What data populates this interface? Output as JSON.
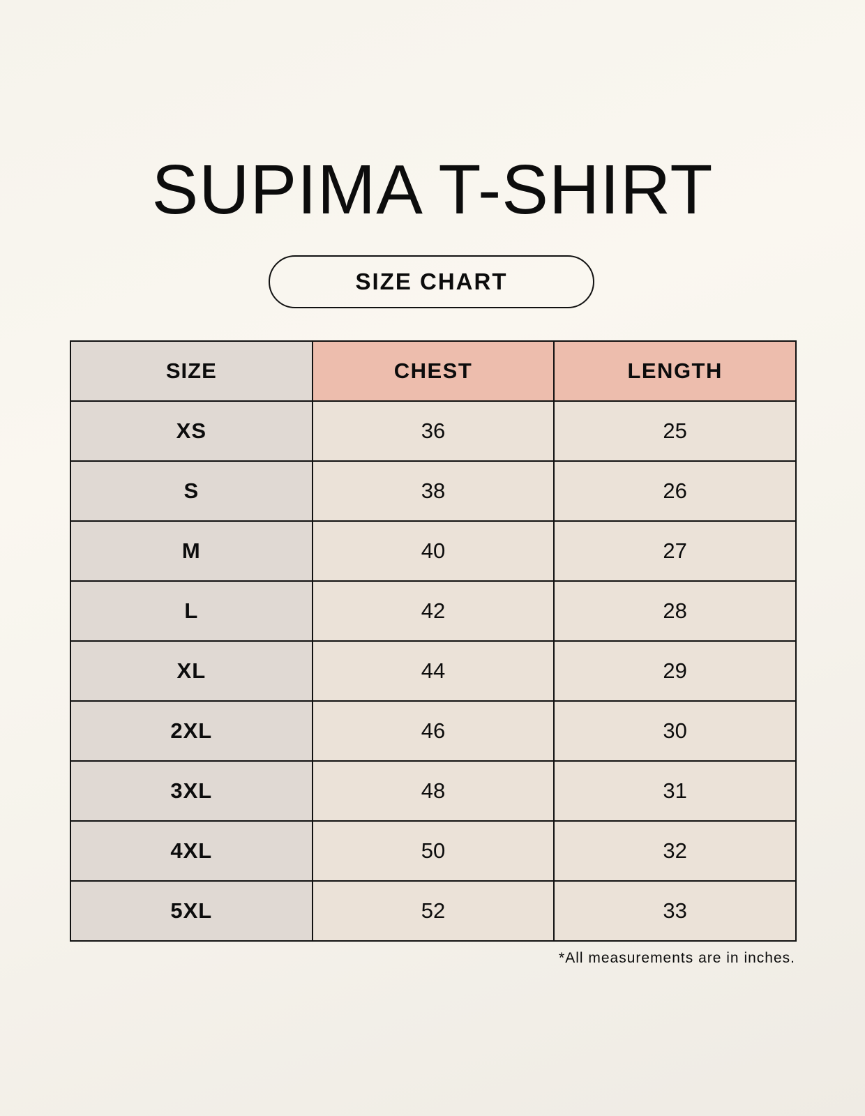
{
  "title": "SUPIMA T-SHIRT",
  "subtitle": "SIZE CHART",
  "table": {
    "headers": [
      "SIZE",
      "CHEST",
      "LENGTH"
    ],
    "rows": [
      [
        "XS",
        "36",
        "25"
      ],
      [
        "S",
        "38",
        "26"
      ],
      [
        "M",
        "40",
        "27"
      ],
      [
        "L",
        "42",
        "28"
      ],
      [
        "XL",
        "44",
        "29"
      ],
      [
        "2XL",
        "46",
        "30"
      ],
      [
        "3XL",
        "48",
        "31"
      ],
      [
        "4XL",
        "50",
        "32"
      ],
      [
        "5XL",
        "52",
        "33"
      ]
    ]
  },
  "footnote": "*All measurements are in inches.",
  "colors": {
    "header_accent": "#edbdad",
    "size_column": "#e0d9d3",
    "cells": "#ebe2d8"
  }
}
